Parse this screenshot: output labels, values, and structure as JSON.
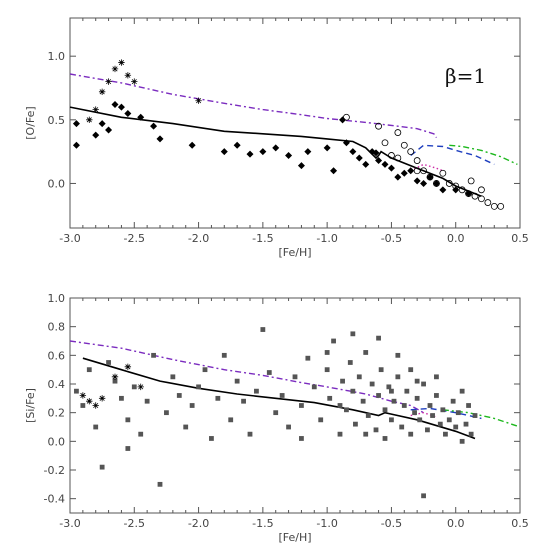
{
  "chart_data": [
    {
      "type": "scatter",
      "title": "",
      "xlabel": "[Fe/H]",
      "ylabel": "[O/Fe]",
      "xlim": [
        -3.0,
        0.5
      ],
      "ylim": [
        -0.35,
        1.3
      ],
      "xticks": [
        -3.0,
        -2.5,
        -2.0,
        -1.5,
        -1.0,
        -0.5,
        0.0,
        0.5
      ],
      "xtick_labels": [
        "-3.0",
        "-2.5",
        "-2.0",
        "-1.5",
        "-1.0",
        "-0.5",
        "0.0",
        "0.5"
      ],
      "yticks": [
        0.0,
        0.5,
        1.0
      ],
      "ytick_labels": [
        "0.0",
        "0.5",
        "1.0"
      ],
      "annotation": "β=1",
      "lines": [
        {
          "style": "solid-black",
          "color": "#000000",
          "x": [
            -3.0,
            -2.6,
            -2.2,
            -1.8,
            -1.5,
            -1.2,
            -1.0,
            -0.8,
            -0.7,
            -0.62,
            -0.6,
            -0.58,
            -0.5,
            -0.3,
            -0.1,
            0.0,
            0.1,
            0.2
          ],
          "y": [
            0.6,
            0.52,
            0.47,
            0.41,
            0.39,
            0.37,
            0.35,
            0.33,
            0.28,
            0.2,
            0.22,
            0.25,
            0.2,
            0.12,
            0.04,
            -0.02,
            -0.06,
            -0.1
          ]
        },
        {
          "style": "dash-dot",
          "color": "#7b2cbf",
          "x": [
            -3.0,
            -2.6,
            -2.2,
            -1.8,
            -1.5,
            -1.2,
            -1.0,
            -0.7,
            -0.45,
            -0.3,
            -0.17,
            -0.15
          ],
          "y": [
            0.86,
            0.79,
            0.7,
            0.63,
            0.58,
            0.54,
            0.51,
            0.48,
            0.45,
            0.43,
            0.39,
            0.36
          ]
        },
        {
          "style": "dashed",
          "color": "#1f3fbf",
          "x": [
            -0.35,
            -0.25,
            -0.1,
            0.0,
            0.15,
            0.3
          ],
          "y": [
            0.22,
            0.3,
            0.29,
            0.26,
            0.22,
            0.15
          ]
        },
        {
          "style": "dotted",
          "color": "#cc2aa6",
          "x": [
            -0.35,
            -0.25,
            -0.15,
            -0.1
          ],
          "y": [
            0.1,
            0.15,
            0.12,
            0.1
          ]
        },
        {
          "style": "dash-dot",
          "color": "#1db81d",
          "x": [
            -0.05,
            0.05,
            0.2,
            0.35,
            0.48
          ],
          "y": [
            0.3,
            0.29,
            0.26,
            0.21,
            0.15
          ]
        }
      ],
      "series": [
        {
          "marker": "filled-diamond",
          "color": "#000000",
          "points": [
            [
              -2.95,
              0.47
            ],
            [
              -2.95,
              0.3
            ],
            [
              -2.8,
              0.38
            ],
            [
              -2.75,
              0.47
            ],
            [
              -2.7,
              0.42
            ],
            [
              -2.65,
              0.62
            ],
            [
              -2.6,
              0.6
            ],
            [
              -2.55,
              0.55
            ],
            [
              -2.45,
              0.52
            ],
            [
              -2.35,
              0.45
            ],
            [
              -2.3,
              0.35
            ],
            [
              -2.05,
              0.3
            ],
            [
              -1.8,
              0.25
            ],
            [
              -1.7,
              0.3
            ],
            [
              -1.6,
              0.23
            ],
            [
              -1.5,
              0.25
            ],
            [
              -1.4,
              0.28
            ],
            [
              -1.3,
              0.22
            ],
            [
              -1.2,
              0.14
            ],
            [
              -1.15,
              0.25
            ],
            [
              -1.0,
              0.28
            ],
            [
              -0.95,
              0.1
            ],
            [
              -0.85,
              0.32
            ],
            [
              -0.8,
              0.25
            ],
            [
              -0.75,
              0.2
            ],
            [
              -0.7,
              0.15
            ],
            [
              -0.65,
              0.25
            ],
            [
              -0.6,
              0.18
            ],
            [
              -0.55,
              0.15
            ],
            [
              -0.5,
              0.12
            ],
            [
              -0.45,
              0.05
            ],
            [
              -0.4,
              0.08
            ],
            [
              -0.35,
              0.1
            ],
            [
              -0.3,
              0.02
            ],
            [
              -0.25,
              0.0
            ],
            [
              -0.2,
              0.05
            ],
            [
              -0.15,
              0.0
            ],
            [
              -0.1,
              -0.05
            ],
            [
              0.0,
              -0.05
            ],
            [
              0.1,
              -0.08
            ],
            [
              -0.88,
              0.5
            ],
            [
              -0.62,
              0.24
            ]
          ]
        },
        {
          "marker": "open-circle",
          "color": "#000000",
          "points": [
            [
              -0.85,
              0.52
            ],
            [
              -0.6,
              0.45
            ],
            [
              -0.55,
              0.32
            ],
            [
              -0.5,
              0.22
            ],
            [
              -0.45,
              0.4
            ],
            [
              -0.4,
              0.3
            ],
            [
              -0.35,
              0.25
            ],
            [
              -0.3,
              0.18
            ],
            [
              -0.25,
              0.1
            ],
            [
              -0.2,
              0.05
            ],
            [
              -0.15,
              0.0
            ],
            [
              -0.1,
              0.08
            ],
            [
              -0.05,
              0.0
            ],
            [
              0.0,
              -0.02
            ],
            [
              0.05,
              -0.05
            ],
            [
              0.1,
              -0.08
            ],
            [
              0.15,
              -0.1
            ],
            [
              0.2,
              -0.12
            ],
            [
              0.25,
              -0.15
            ],
            [
              0.3,
              -0.18
            ],
            [
              0.35,
              -0.18
            ],
            [
              -0.45,
              0.2
            ],
            [
              -0.3,
              0.1
            ],
            [
              0.12,
              0.02
            ],
            [
              0.2,
              -0.05
            ]
          ]
        },
        {
          "marker": "asterisk",
          "color": "#000000",
          "points": [
            [
              -2.85,
              0.5
            ],
            [
              -2.8,
              0.58
            ],
            [
              -2.75,
              0.72
            ],
            [
              -2.7,
              0.8
            ],
            [
              -2.65,
              0.9
            ],
            [
              -2.6,
              0.95
            ],
            [
              -2.55,
              0.85
            ],
            [
              -2.5,
              0.8
            ],
            [
              -2.0,
              0.65
            ]
          ]
        }
      ]
    },
    {
      "type": "scatter",
      "title": "",
      "xlabel": "[Fe/H]",
      "ylabel": "[Si/Fe]",
      "xlim": [
        -3.0,
        0.5
      ],
      "ylim": [
        -0.5,
        1.0
      ],
      "xticks": [
        -3.0,
        -2.5,
        -2.0,
        -1.5,
        -1.0,
        -0.5,
        0.0,
        0.5
      ],
      "xtick_labels": [
        "-3.0",
        "-2.5",
        "-2.0",
        "-1.5",
        "-1.0",
        "-0.5",
        "0.0",
        "0.5"
      ],
      "yticks": [
        -0.4,
        -0.2,
        0.0,
        0.2,
        0.4,
        0.6,
        0.8,
        1.0
      ],
      "ytick_labels": [
        "-0.4",
        "-0.2",
        "0.0",
        "0.2",
        "0.4",
        "0.6",
        "0.8",
        "1.0"
      ],
      "lines": [
        {
          "style": "solid-black",
          "color": "#000000",
          "x": [
            -2.9,
            -2.6,
            -2.3,
            -2.0,
            -1.7,
            -1.4,
            -1.1,
            -0.8,
            -0.6,
            -0.55,
            -0.5,
            -0.3,
            0.0,
            0.15
          ],
          "y": [
            0.58,
            0.5,
            0.42,
            0.37,
            0.33,
            0.3,
            0.27,
            0.22,
            0.18,
            0.2,
            0.19,
            0.15,
            0.07,
            0.02
          ]
        },
        {
          "style": "dash-dot",
          "color": "#7b2cbf",
          "x": [
            -3.0,
            -2.6,
            -2.2,
            -1.8,
            -1.5,
            -1.2,
            -1.0,
            -0.7,
            -0.5,
            -0.35,
            -0.25
          ],
          "y": [
            0.7,
            0.65,
            0.57,
            0.5,
            0.46,
            0.41,
            0.38,
            0.33,
            0.28,
            0.25,
            0.2
          ]
        },
        {
          "style": "dashed",
          "color": "#1f3fbf",
          "x": [
            -0.35,
            -0.2,
            0.0,
            0.2
          ],
          "y": [
            0.22,
            0.23,
            0.2,
            0.16
          ]
        },
        {
          "style": "dotted",
          "color": "#cc2aa6",
          "x": [
            -0.35,
            -0.25,
            -0.15
          ],
          "y": [
            0.18,
            0.2,
            0.17
          ]
        },
        {
          "style": "dash-dot",
          "color": "#1db81d",
          "x": [
            -0.1,
            0.1,
            0.3,
            0.5
          ],
          "y": [
            0.22,
            0.2,
            0.16,
            0.1
          ]
        }
      ],
      "series": [
        {
          "marker": "filled-square",
          "color": "#555555",
          "points": [
            [
              -2.95,
              0.35
            ],
            [
              -2.9,
              0.25
            ],
            [
              -2.85,
              0.5
            ],
            [
              -2.8,
              0.1
            ],
            [
              -2.75,
              -0.18
            ],
            [
              -2.7,
              0.55
            ],
            [
              -2.65,
              0.42
            ],
            [
              -2.6,
              0.3
            ],
            [
              -2.55,
              0.15
            ],
            [
              -2.5,
              0.38
            ],
            [
              -2.45,
              0.05
            ],
            [
              -2.4,
              0.28
            ],
            [
              -2.35,
              0.6
            ],
            [
              -2.3,
              -0.3
            ],
            [
              -2.25,
              0.2
            ],
            [
              -2.2,
              0.45
            ],
            [
              -2.15,
              0.32
            ],
            [
              -2.1,
              0.1
            ],
            [
              -2.05,
              0.25
            ],
            [
              -2.0,
              0.38
            ],
            [
              -1.95,
              0.5
            ],
            [
              -1.9,
              0.02
            ],
            [
              -1.85,
              0.3
            ],
            [
              -1.8,
              0.6
            ],
            [
              -1.75,
              0.15
            ],
            [
              -1.7,
              0.42
            ],
            [
              -1.65,
              0.28
            ],
            [
              -1.6,
              0.05
            ],
            [
              -1.55,
              0.35
            ],
            [
              -1.5,
              0.78
            ],
            [
              -1.45,
              0.48
            ],
            [
              -1.4,
              0.2
            ],
            [
              -1.35,
              0.32
            ],
            [
              -1.3,
              0.1
            ],
            [
              -1.25,
              0.45
            ],
            [
              -1.2,
              0.25
            ],
            [
              -1.15,
              0.58
            ],
            [
              -1.1,
              0.38
            ],
            [
              -1.05,
              0.15
            ],
            [
              -1.0,
              0.5
            ],
            [
              -0.98,
              0.3
            ],
            [
              -0.95,
              0.7
            ],
            [
              -0.9,
              0.05
            ],
            [
              -0.88,
              0.42
            ],
            [
              -0.85,
              0.22
            ],
            [
              -0.82,
              0.55
            ],
            [
              -0.8,
              0.35
            ],
            [
              -0.78,
              0.12
            ],
            [
              -0.75,
              0.45
            ],
            [
              -0.72,
              0.28
            ],
            [
              -0.7,
              0.62
            ],
            [
              -0.68,
              0.18
            ],
            [
              -0.65,
              0.4
            ],
            [
              -0.62,
              0.08
            ],
            [
              -0.6,
              0.32
            ],
            [
              -0.58,
              0.5
            ],
            [
              -0.55,
              0.22
            ],
            [
              -0.52,
              0.38
            ],
            [
              -0.5,
              0.15
            ],
            [
              -0.48,
              0.28
            ],
            [
              -0.45,
              0.45
            ],
            [
              -0.42,
              0.1
            ],
            [
              -0.4,
              0.25
            ],
            [
              -0.38,
              0.35
            ],
            [
              -0.35,
              0.05
            ],
            [
              -0.32,
              0.2
            ],
            [
              -0.3,
              0.3
            ],
            [
              -0.28,
              0.15
            ],
            [
              -0.25,
              0.4
            ],
            [
              -0.22,
              0.08
            ],
            [
              -0.2,
              0.25
            ],
            [
              -0.18,
              0.18
            ],
            [
              -0.15,
              0.32
            ],
            [
              -0.12,
              0.12
            ],
            [
              -0.1,
              0.22
            ],
            [
              -0.08,
              0.05
            ],
            [
              -0.05,
              0.15
            ],
            [
              -0.02,
              0.28
            ],
            [
              0.0,
              0.1
            ],
            [
              0.02,
              0.2
            ],
            [
              0.05,
              0.0
            ],
            [
              0.08,
              0.12
            ],
            [
              0.1,
              0.25
            ],
            [
              0.12,
              0.05
            ],
            [
              0.15,
              0.18
            ],
            [
              -0.25,
              -0.38
            ],
            [
              -0.6,
              0.72
            ],
            [
              -0.8,
              0.75
            ],
            [
              -1.0,
              0.62
            ],
            [
              -0.7,
              0.05
            ],
            [
              -1.2,
              0.02
            ],
            [
              -2.55,
              -0.05
            ],
            [
              -0.45,
              0.6
            ],
            [
              -0.15,
              0.45
            ],
            [
              0.05,
              0.35
            ],
            [
              -0.55,
              0.02
            ],
            [
              -0.35,
              0.5
            ],
            [
              -0.9,
              0.25
            ],
            [
              -0.5,
              0.35
            ],
            [
              -0.3,
              0.42
            ]
          ]
        },
        {
          "marker": "asterisk",
          "color": "#000000",
          "points": [
            [
              -2.9,
              0.32
            ],
            [
              -2.85,
              0.28
            ],
            [
              -2.8,
              0.25
            ],
            [
              -2.75,
              0.3
            ],
            [
              -2.65,
              0.45
            ],
            [
              -2.55,
              0.52
            ],
            [
              -2.45,
              0.38
            ]
          ]
        }
      ]
    }
  ]
}
